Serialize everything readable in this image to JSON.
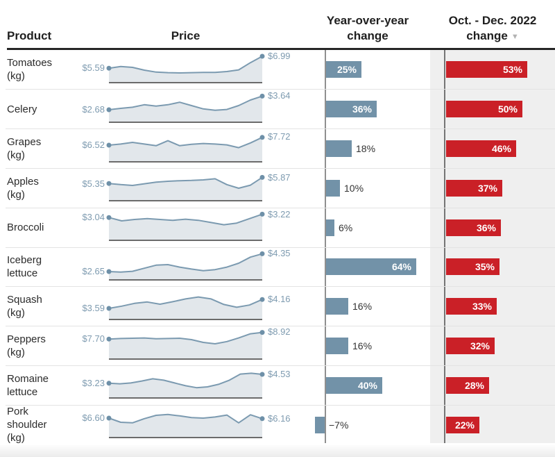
{
  "header": {
    "product": "Product",
    "price": "Price",
    "yoy_line1": "Year-over-year",
    "yoy_line2": "change",
    "period_line1": "Oct. - Dec. 2022",
    "period_line2": "change",
    "sort_icon": "▼"
  },
  "chart_data": {
    "type": "table",
    "columns": [
      "Product",
      "Price",
      "Year-over-year change",
      "Oct. - Dec. 2022 change"
    ],
    "sort": {
      "column": "Oct. - Dec. 2022 change",
      "direction": "desc",
      "icon": "▼"
    },
    "colors": {
      "bar_blue": "#7292a8",
      "bar_red": "#ca2027",
      "spark_line": "#7b9ab0",
      "spark_fill": "#e2e7eb",
      "spark_dot": "#6e90a8",
      "spark_baseline": "#6b6b6b",
      "price_text": "#7e9bb0",
      "label_inside": "#ffffff",
      "label_outside": "#333333",
      "axis_yoy": "#8f8f8f",
      "axis_period": "#757575",
      "shade_column_bg": "#efefef"
    },
    "rows": [
      {
        "product": "Tomatoes (kg)",
        "product_lines": [
          "Tomatoes",
          "(kg)"
        ],
        "price_start_label": "$5.59",
        "price_end_label": "$6.99",
        "price_start": 5.59,
        "price_end": 6.99,
        "yoy_pct": 25,
        "yoy_label": "25%",
        "period_pct": 53,
        "period_label": "53%",
        "spark": [
          52,
          58,
          55,
          45,
          38,
          36,
          35,
          36,
          37,
          37,
          40,
          46,
          72,
          95
        ]
      },
      {
        "product": "Celery",
        "product_lines": [
          "Celery"
        ],
        "price_start_label": "$2.68",
        "price_end_label": "$3.64",
        "price_start": 2.68,
        "price_end": 3.64,
        "yoy_pct": 36,
        "yoy_label": "36%",
        "period_pct": 50,
        "period_label": "50%",
        "spark": [
          45,
          50,
          54,
          63,
          58,
          63,
          72,
          60,
          48,
          43,
          46,
          60,
          80,
          94
        ]
      },
      {
        "product": "Grapes (kg)",
        "product_lines": [
          "Grapes",
          "(kg)"
        ],
        "price_start_label": "$6.52",
        "price_end_label": "$7.72",
        "price_start": 6.52,
        "price_end": 7.72,
        "yoy_pct": 18,
        "yoy_label": "18%",
        "period_pct": 46,
        "period_label": "46%",
        "spark": [
          60,
          64,
          70,
          64,
          58,
          76,
          58,
          63,
          66,
          64,
          61,
          51,
          68,
          88
        ]
      },
      {
        "product": "Apples (kg)",
        "product_lines": [
          "Apples",
          "(kg)"
        ],
        "price_start_label": "$5.35",
        "price_end_label": "$5.87",
        "price_start": 5.35,
        "price_end": 5.87,
        "yoy_pct": 10,
        "yoy_label": "10%",
        "period_pct": 37,
        "period_label": "37%",
        "spark": [
          62,
          58,
          55,
          61,
          67,
          70,
          72,
          73,
          75,
          79,
          58,
          45,
          56,
          84
        ]
      },
      {
        "product": "Broccoli",
        "product_lines": [
          "Broccoli"
        ],
        "price_start_label": "$3.04",
        "price_end_label": "$3.22",
        "price_start": 3.04,
        "price_end": 3.22,
        "yoy_pct": 6,
        "yoy_label": "6%",
        "period_pct": 36,
        "period_label": "36%",
        "spark": [
          82,
          70,
          75,
          78,
          75,
          72,
          76,
          72,
          64,
          56,
          62,
          78,
          94
        ]
      },
      {
        "product": "Iceberg lettuce",
        "product_lines": [
          "Iceberg",
          "lettuce"
        ],
        "price_start_label": "$2.65",
        "price_end_label": "$4.35",
        "price_start": 2.65,
        "price_end": 4.35,
        "yoy_pct": 64,
        "yoy_label": "64%",
        "period_pct": 35,
        "period_label": "35%",
        "spark": [
          30,
          28,
          31,
          42,
          53,
          55,
          46,
          39,
          33,
          37,
          46,
          60,
          82,
          94
        ]
      },
      {
        "product": "Squash (kg)",
        "product_lines": [
          "Squash",
          "(kg)"
        ],
        "price_start_label": "$3.59",
        "price_end_label": "$4.16",
        "price_start": 3.59,
        "price_end": 4.16,
        "yoy_pct": 16,
        "yoy_label": "16%",
        "period_pct": 33,
        "period_label": "33%",
        "spark": [
          40,
          48,
          58,
          63,
          55,
          64,
          74,
          81,
          74,
          54,
          44,
          52,
          72
        ]
      },
      {
        "product": "Peppers (kg)",
        "product_lines": [
          "Peppers",
          "(kg)"
        ],
        "price_start_label": "$7.70",
        "price_end_label": "$8.92",
        "price_start": 7.7,
        "price_end": 8.92,
        "yoy_pct": 16,
        "yoy_label": "16%",
        "period_pct": 32,
        "period_label": "32%",
        "spark": [
          72,
          74,
          75,
          76,
          73,
          74,
          75,
          70,
          60,
          55,
          63,
          76,
          91,
          96
        ]
      },
      {
        "product": "Romaine lettuce",
        "product_lines": [
          "Romaine",
          "lettuce"
        ],
        "price_start_label": "$3.23",
        "price_end_label": "$4.53",
        "price_start": 3.23,
        "price_end": 4.53,
        "yoy_pct": 40,
        "yoy_label": "40%",
        "period_pct": 28,
        "period_label": "28%",
        "spark": [
          53,
          51,
          54,
          61,
          69,
          64,
          54,
          44,
          37,
          40,
          49,
          64,
          86,
          89,
          85
        ]
      },
      {
        "product": "Pork shoulder (kg)",
        "product_lines": [
          "Pork",
          "shoulder",
          "(kg)"
        ],
        "price_start_label": "$6.60",
        "price_end_label": "$6.16",
        "price_start": 6.6,
        "price_end": 6.16,
        "yoy_pct": -7,
        "yoy_label": "−7%",
        "period_pct": 22,
        "period_label": "22%",
        "spark": [
          70,
          55,
          53,
          68,
          80,
          83,
          78,
          72,
          70,
          74,
          81,
          53,
          82,
          68
        ]
      }
    ]
  }
}
